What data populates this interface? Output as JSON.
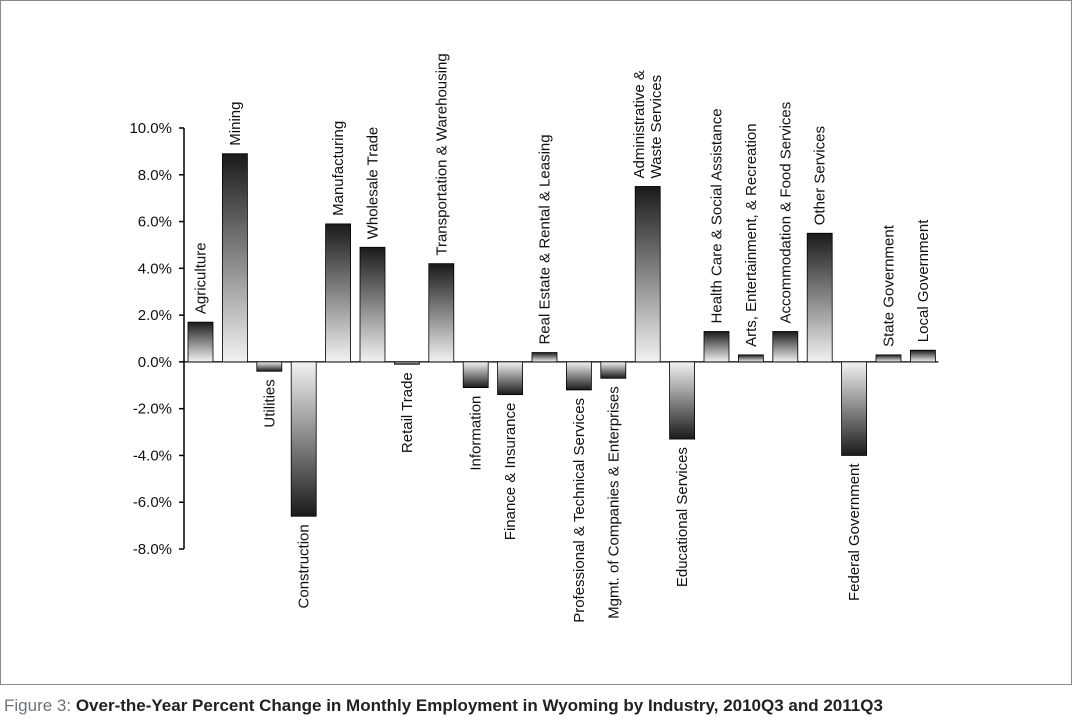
{
  "figure": {
    "prefix": "Figure 3:",
    "title": "Over-the-Year Percent Change in Monthly Employment in Wyoming by Industry, 2010Q3 and 2011Q3"
  },
  "chart_data": {
    "type": "bar",
    "title": "Over-the-Year Percent Change in Monthly Employment in Wyoming by Industry, 2010Q3 and 2011Q3",
    "xlabel": "",
    "ylabel": "",
    "ylim": [
      -8,
      10
    ],
    "yticks": [
      10,
      8,
      6,
      4,
      2,
      0,
      -2,
      -4,
      -6,
      -8
    ],
    "ytick_labels": [
      "10.0%",
      "8.0%",
      "6.0%",
      "4.0%",
      "2.0%",
      "0.0%",
      "-2.0%",
      "-4.0%",
      "-6.0%",
      "-8.0%"
    ],
    "categories": [
      "Agriculture",
      "Mining",
      "Utilities",
      "Construction",
      "Manufacturing",
      "Wholesale Trade",
      "Retail Trade",
      "Transportation & Warehousing",
      "Information",
      "Finance & Insurance",
      "Real Estate & Rental & Leasing",
      "Professional & Technical Services",
      "Mgmt. of Companies & Enterprises",
      "Administrative & Waste Services",
      "Educational Services",
      "Health Care & Social Assistance",
      "Arts, Entertainment, & Recreation",
      "Accommodation & Food Services",
      "Other Services",
      "Federal Government",
      "State Government",
      "Local Government"
    ],
    "values": [
      1.7,
      8.9,
      -0.4,
      -6.6,
      5.9,
      4.9,
      -0.1,
      4.2,
      -1.1,
      -1.4,
      0.4,
      -1.2,
      -0.7,
      7.5,
      -3.3,
      1.3,
      0.3,
      1.3,
      5.5,
      -4.0,
      0.3,
      0.5
    ],
    "label_lines": {
      "Administrative & Waste Services": [
        "Administrative &",
        "Waste Services"
      ]
    }
  }
}
